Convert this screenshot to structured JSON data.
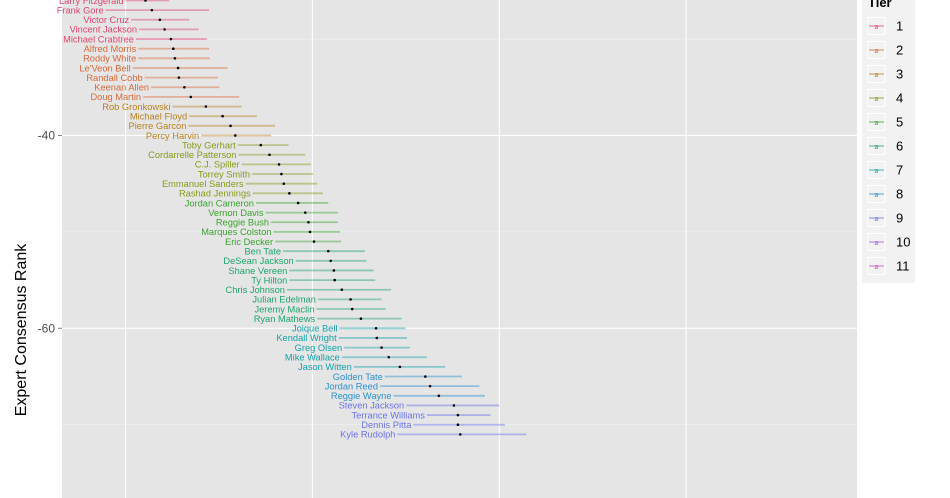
{
  "chart_data": {
    "type": "errorbar",
    "ylabel": "Expert Consensus Rank",
    "y_ticks": [
      -40,
      -60
    ],
    "y_range": [
      -25.95,
      -77.6
    ],
    "x_range": [
      0,
      100
    ],
    "x_gridlines": [
      8,
      31.5,
      55,
      78.5
    ],
    "legend": {
      "title": "Tier",
      "placement": "right",
      "key_glyph": "a",
      "tiers": [
        "1",
        "2",
        "3",
        "4",
        "5",
        "6",
        "7",
        "8",
        "9",
        "10",
        "11"
      ]
    },
    "tier_colors": {
      "1": "#e3426e",
      "2": "#d96a3c",
      "3": "#b98120",
      "4": "#889a1a",
      "5": "#3aa32f",
      "6": "#1ea46d",
      "7": "#14a2a8",
      "8": "#2a8fcf",
      "9": "#6b72ee",
      "10": "#a657e4",
      "11": "#d947be"
    },
    "players": [
      {
        "name": "Larry Fitzgerald",
        "rank": -26,
        "mean": 10.5,
        "lo": 8.0,
        "hi": 13.5,
        "tier": "1"
      },
      {
        "name": "Frank Gore",
        "rank": -27,
        "mean": 11.3,
        "lo": 5.5,
        "hi": 18.5,
        "tier": "1"
      },
      {
        "name": "Victor Cruz",
        "rank": -28,
        "mean": 12.3,
        "lo": 8.7,
        "hi": 16.0,
        "tier": "1"
      },
      {
        "name": "Vincent Jackson",
        "rank": -29,
        "mean": 12.9,
        "lo": 9.7,
        "hi": 17.2,
        "tier": "1"
      },
      {
        "name": "Michael Crabtree",
        "rank": -30,
        "mean": 13.7,
        "lo": 9.3,
        "hi": 18.2,
        "tier": "1"
      },
      {
        "name": "Alfred Morris",
        "rank": -31,
        "mean": 14.0,
        "lo": 9.6,
        "hi": 18.5,
        "tier": "2"
      },
      {
        "name": "Roddy White",
        "rank": -32,
        "mean": 14.2,
        "lo": 9.6,
        "hi": 18.6,
        "tier": "2"
      },
      {
        "name": "Le'Veon Bell",
        "rank": -33,
        "mean": 14.6,
        "lo": 8.9,
        "hi": 20.8,
        "tier": "2"
      },
      {
        "name": "Randall Cobb",
        "rank": -34,
        "mean": 14.7,
        "lo": 10.4,
        "hi": 19.6,
        "tier": "2"
      },
      {
        "name": "Keenan Allen",
        "rank": -35,
        "mean": 15.4,
        "lo": 11.2,
        "hi": 19.8,
        "tier": "2"
      },
      {
        "name": "Doug Martin",
        "rank": -36,
        "mean": 16.2,
        "lo": 10.2,
        "hi": 22.3,
        "tier": "2"
      },
      {
        "name": "Rob Gronkowski",
        "rank": -37,
        "mean": 18.1,
        "lo": 13.9,
        "hi": 22.6,
        "tier": "3"
      },
      {
        "name": "Michael Floyd",
        "rank": -38,
        "mean": 20.2,
        "lo": 16.0,
        "hi": 24.5,
        "tier": "3"
      },
      {
        "name": "Pierre Garcon",
        "rank": -39,
        "mean": 21.2,
        "lo": 15.9,
        "hi": 26.8,
        "tier": "3"
      },
      {
        "name": "Percy Harvin",
        "rank": -40,
        "mean": 21.8,
        "lo": 17.5,
        "hi": 26.3,
        "tier": "3"
      },
      {
        "name": "Toby Gerhart",
        "rank": -41,
        "mean": 25.0,
        "lo": 22.1,
        "hi": 28.5,
        "tier": "4"
      },
      {
        "name": "Cordarrelle Patterson",
        "rank": -42,
        "mean": 26.1,
        "lo": 22.2,
        "hi": 30.6,
        "tier": "4"
      },
      {
        "name": "C.J. Spiller",
        "rank": -43,
        "mean": 27.3,
        "lo": 22.6,
        "hi": 31.3,
        "tier": "4"
      },
      {
        "name": "Torrey Smith",
        "rank": -44,
        "mean": 27.6,
        "lo": 23.9,
        "hi": 31.6,
        "tier": "4"
      },
      {
        "name": "Emmanuel Sanders",
        "rank": -45,
        "mean": 27.9,
        "lo": 23.1,
        "hi": 32.1,
        "tier": "4"
      },
      {
        "name": "Rashad Jennings",
        "rank": -46,
        "mean": 28.6,
        "lo": 24.0,
        "hi": 32.8,
        "tier": "4"
      },
      {
        "name": "Jordan Cameron",
        "rank": -47,
        "mean": 29.7,
        "lo": 24.4,
        "hi": 33.5,
        "tier": "5"
      },
      {
        "name": "Vernon Davis",
        "rank": -48,
        "mean": 30.6,
        "lo": 25.6,
        "hi": 34.7,
        "tier": "5"
      },
      {
        "name": "Reggie Bush",
        "rank": -49,
        "mean": 31.0,
        "lo": 26.3,
        "hi": 34.7,
        "tier": "5"
      },
      {
        "name": "Marques Colston",
        "rank": -50,
        "mean": 31.2,
        "lo": 26.6,
        "hi": 35.0,
        "tier": "5"
      },
      {
        "name": "Eric Decker",
        "rank": -51,
        "mean": 31.7,
        "lo": 26.8,
        "hi": 35.1,
        "tier": "5"
      },
      {
        "name": "Ben Tate",
        "rank": -52,
        "mean": 33.5,
        "lo": 27.8,
        "hi": 38.1,
        "tier": "6"
      },
      {
        "name": "DeSean Jackson",
        "rank": -53,
        "mean": 33.8,
        "lo": 29.4,
        "hi": 38.3,
        "tier": "6"
      },
      {
        "name": "Shane Vereen",
        "rank": -54,
        "mean": 34.2,
        "lo": 28.6,
        "hi": 39.2,
        "tier": "6"
      },
      {
        "name": "Ty Hilton",
        "rank": -55,
        "mean": 34.3,
        "lo": 28.6,
        "hi": 39.4,
        "tier": "6"
      },
      {
        "name": "Chris Johnson",
        "rank": -56,
        "mean": 35.2,
        "lo": 28.3,
        "hi": 41.4,
        "tier": "6"
      },
      {
        "name": "Julian Edelman",
        "rank": -57,
        "mean": 36.3,
        "lo": 32.2,
        "hi": 40.2,
        "tier": "6"
      },
      {
        "name": "Jeremy Maclin",
        "rank": -58,
        "mean": 36.5,
        "lo": 32.0,
        "hi": 40.7,
        "tier": "6"
      },
      {
        "name": "Ryan Mathews",
        "rank": -59,
        "mean": 37.6,
        "lo": 32.1,
        "hi": 42.7,
        "tier": "6"
      },
      {
        "name": "Joique Bell",
        "rank": -60,
        "mean": 39.5,
        "lo": 34.9,
        "hi": 43.2,
        "tier": "7"
      },
      {
        "name": "Kendall Wright",
        "rank": -61,
        "mean": 39.6,
        "lo": 34.8,
        "hi": 43.4,
        "tier": "7"
      },
      {
        "name": "Greg Olsen",
        "rank": -62,
        "mean": 40.2,
        "lo": 35.5,
        "hi": 43.8,
        "tier": "7"
      },
      {
        "name": "Mike Wallace",
        "rank": -63,
        "mean": 41.1,
        "lo": 35.2,
        "hi": 45.9,
        "tier": "7"
      },
      {
        "name": "Jason Witten",
        "rank": -64,
        "mean": 42.5,
        "lo": 36.7,
        "hi": 48.2,
        "tier": "7"
      },
      {
        "name": "Golden Tate",
        "rank": -65,
        "mean": 45.7,
        "lo": 40.6,
        "hi": 50.3,
        "tier": "8"
      },
      {
        "name": "Jordan Reed",
        "rank": -66,
        "mean": 46.3,
        "lo": 40.0,
        "hi": 52.5,
        "tier": "8"
      },
      {
        "name": "Reggie Wayne",
        "rank": -67,
        "mean": 47.4,
        "lo": 41.7,
        "hi": 53.2,
        "tier": "8"
      },
      {
        "name": "Steven Jackson",
        "rank": -68,
        "mean": 49.3,
        "lo": 43.3,
        "hi": 55.0,
        "tier": "9"
      },
      {
        "name": "Terrance Williams",
        "rank": -69,
        "mean": 49.8,
        "lo": 45.9,
        "hi": 53.9,
        "tier": "9"
      },
      {
        "name": "Dennis Pitta",
        "rank": -70,
        "mean": 49.8,
        "lo": 44.2,
        "hi": 55.7,
        "tier": "9"
      },
      {
        "name": "Kyle Rudolph",
        "rank": -71,
        "mean": 50.1,
        "lo": 42.2,
        "hi": 58.4,
        "tier": "9"
      }
    ]
  }
}
